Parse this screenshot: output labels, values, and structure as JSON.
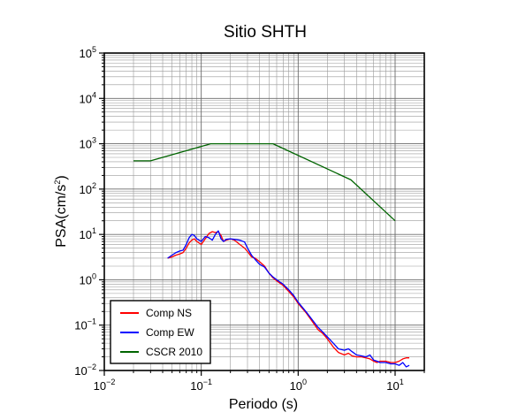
{
  "chart_data": {
    "type": "line",
    "title": "Sitio SHTH",
    "xlabel": "Periodo (s)",
    "ylabel_base": "PSA(cm/s",
    "ylabel_sup": "2",
    "ylabel_end": ")",
    "x_scale": "log",
    "y_scale": "log",
    "xlim": [
      0.01,
      20
    ],
    "ylim": [
      0.01,
      100000
    ],
    "x_ticks": [
      {
        "base": "10",
        "exp": "−2",
        "value": 0.01
      },
      {
        "base": "10",
        "exp": "−1",
        "value": 0.1
      },
      {
        "base": "10",
        "exp": "0",
        "value": 1
      },
      {
        "base": "10",
        "exp": "1",
        "value": 10
      }
    ],
    "y_ticks": [
      {
        "base": "10",
        "exp": "−2",
        "value": 0.01
      },
      {
        "base": "10",
        "exp": "−1",
        "value": 0.1
      },
      {
        "base": "10",
        "exp": "0",
        "value": 1
      },
      {
        "base": "10",
        "exp": "1",
        "value": 10
      },
      {
        "base": "10",
        "exp": "2",
        "value": 100
      },
      {
        "base": "10",
        "exp": "3",
        "value": 1000
      },
      {
        "base": "10",
        "exp": "4",
        "value": 10000
      },
      {
        "base": "10",
        "exp": "5",
        "value": 100000
      }
    ],
    "grid": true,
    "legend_position": "bottom-left",
    "series": [
      {
        "name": "Comp NS",
        "color": "#ff0000",
        "x": [
          0.045,
          0.05,
          0.055,
          0.06,
          0.065,
          0.07,
          0.075,
          0.08,
          0.085,
          0.09,
          0.1,
          0.11,
          0.12,
          0.13,
          0.14,
          0.15,
          0.16,
          0.17,
          0.18,
          0.2,
          0.22,
          0.25,
          0.28,
          0.3,
          0.33,
          0.36,
          0.4,
          0.45,
          0.5,
          0.55,
          0.6,
          0.7,
          0.8,
          0.9,
          1.0,
          1.2,
          1.4,
          1.6,
          1.8,
          2.0,
          2.3,
          2.6,
          3.0,
          3.3,
          3.6,
          4.0,
          4.5,
          5.0,
          5.5,
          6.0,
          6.5,
          7.0,
          8.0,
          9.0,
          10.0,
          11.0,
          12.0,
          13.0,
          14.0
        ],
        "y": [
          3.0,
          3.2,
          3.5,
          3.7,
          4.0,
          5.0,
          6.5,
          7.5,
          8.0,
          7.0,
          6.0,
          8.0,
          10.5,
          11.5,
          11.0,
          11.5,
          9.5,
          7.0,
          7.5,
          8.0,
          7.5,
          6.0,
          5.0,
          4.2,
          3.2,
          3.0,
          2.5,
          2.0,
          1.4,
          1.1,
          0.95,
          0.75,
          0.55,
          0.42,
          0.3,
          0.19,
          0.12,
          0.08,
          0.065,
          0.05,
          0.033,
          0.025,
          0.022,
          0.024,
          0.021,
          0.02,
          0.02,
          0.019,
          0.018,
          0.016,
          0.015,
          0.016,
          0.016,
          0.015,
          0.015,
          0.016,
          0.018,
          0.019,
          0.019
        ]
      },
      {
        "name": "Comp EW",
        "color": "#0000ff",
        "x": [
          0.045,
          0.05,
          0.055,
          0.06,
          0.065,
          0.07,
          0.075,
          0.08,
          0.085,
          0.09,
          0.1,
          0.11,
          0.12,
          0.13,
          0.14,
          0.15,
          0.16,
          0.17,
          0.18,
          0.2,
          0.22,
          0.25,
          0.28,
          0.3,
          0.33,
          0.36,
          0.4,
          0.45,
          0.5,
          0.55,
          0.6,
          0.7,
          0.8,
          0.9,
          1.0,
          1.2,
          1.4,
          1.6,
          1.8,
          2.0,
          2.3,
          2.6,
          3.0,
          3.3,
          3.6,
          4.0,
          4.5,
          5.0,
          5.5,
          6.0,
          6.5,
          7.0,
          8.0,
          9.0,
          10.0,
          11.0,
          12.0,
          13.0,
          14.0
        ],
        "y": [
          3.0,
          3.5,
          4.0,
          4.3,
          4.5,
          6.0,
          8.5,
          10.0,
          9.5,
          8.0,
          7.0,
          9.0,
          8.5,
          7.5,
          10.0,
          12.0,
          8.0,
          7.0,
          7.8,
          8.0,
          7.8,
          7.5,
          6.8,
          5.0,
          3.5,
          2.8,
          2.2,
          1.9,
          1.4,
          1.15,
          1.0,
          0.8,
          0.6,
          0.45,
          0.32,
          0.2,
          0.13,
          0.09,
          0.07,
          0.055,
          0.04,
          0.03,
          0.028,
          0.03,
          0.026,
          0.022,
          0.021,
          0.02,
          0.022,
          0.017,
          0.016,
          0.015,
          0.015,
          0.014,
          0.014,
          0.013,
          0.015,
          0.012,
          0.013
        ]
      },
      {
        "name": "CSCR 2010",
        "color": "#006400",
        "x": [
          0.02,
          0.03,
          0.125,
          0.55,
          3.5,
          10.0
        ],
        "y": [
          420,
          420,
          1000,
          1000,
          160,
          20
        ]
      }
    ]
  }
}
